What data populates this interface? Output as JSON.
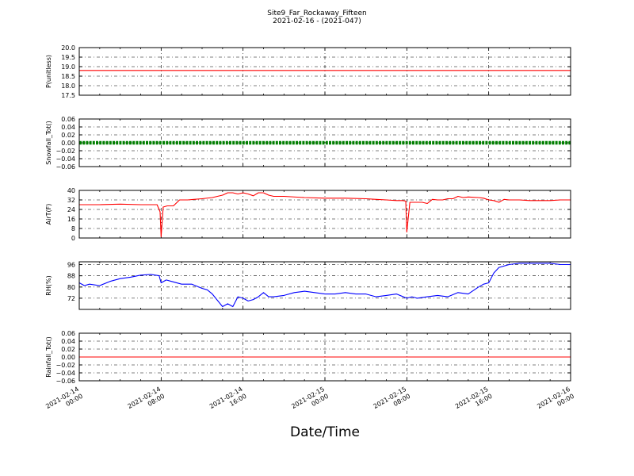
{
  "figure": {
    "title_line1": "Site9_Far_Rockaway_Fifteen",
    "title_line2": "2021-02-16 - (2021-047)",
    "xlabel": "Date/Time",
    "x_ticks": [
      {
        "line1": "2021-02-14",
        "line2": "00:00",
        "t": 0
      },
      {
        "line1": "2021-02-14",
        "line2": "08:00",
        "t": 8
      },
      {
        "line1": "2021-02-14",
        "line2": "16:00",
        "t": 16
      },
      {
        "line1": "2021-02-15",
        "line2": "00:00",
        "t": 24
      },
      {
        "line1": "2021-02-15",
        "line2": "08:00",
        "t": 32
      },
      {
        "line1": "2021-02-15",
        "line2": "16:00",
        "t": 40
      },
      {
        "line1": "2021-02-16",
        "line2": "00:00",
        "t": 48
      }
    ]
  },
  "chart_data": [
    {
      "type": "line",
      "ylabel": "P(unitless)",
      "ylim": [
        17.5,
        20.0
      ],
      "y_ticks": [
        "20.0",
        "19.5",
        "19.0",
        "18.5",
        "18.0",
        "17.5"
      ],
      "color": "#ff0000",
      "x_units": "hours since 2021-02-14 00:00",
      "x": [
        0,
        48
      ],
      "values": [
        18.8,
        18.8
      ]
    },
    {
      "type": "line",
      "ylabel": "Snowfall_Tot()",
      "ylim": [
        -0.06,
        0.06
      ],
      "y_ticks": [
        "0.06",
        "0.04",
        "0.02",
        "0.00",
        "−0.02",
        "−0.04",
        "−0.06"
      ],
      "color": "#008000",
      "markers": true,
      "x_units": "hours since 2021-02-14 00:00",
      "x": [
        0,
        48
      ],
      "values": [
        0.0,
        0.0
      ]
    },
    {
      "type": "line",
      "ylabel": "AirT(F)",
      "ylim": [
        0,
        40
      ],
      "y_ticks": [
        "40",
        "32",
        "24",
        "16",
        "8",
        "0"
      ],
      "color": "#ff0000",
      "x_units": "hours since 2021-02-14 00:00",
      "x": [
        0,
        2,
        4,
        6,
        7.6,
        7.9,
        8.0,
        8.2,
        8.6,
        9.2,
        9.8,
        10.6,
        11.2,
        12,
        13,
        14,
        14.5,
        15,
        15.5,
        16,
        16.5,
        17,
        17.5,
        18,
        18.5,
        19,
        20,
        22,
        24,
        26,
        28,
        29,
        30,
        31,
        31.6,
        31.9,
        32.0,
        32.3,
        32.8,
        33.5,
        34,
        34.5,
        35,
        35.5,
        36,
        36.5,
        37,
        37.5,
        38,
        39,
        39.5,
        40,
        40.5,
        41,
        41.5,
        42,
        43,
        44,
        46,
        47,
        48
      ],
      "values": [
        28,
        28,
        28.5,
        28,
        28,
        22,
        1,
        26,
        27,
        27,
        32,
        32,
        32.5,
        33,
        34,
        36,
        38,
        38,
        37,
        38,
        37,
        35.5,
        38,
        38,
        36,
        35,
        35,
        34,
        33.5,
        33.5,
        33,
        32.5,
        32,
        31.5,
        31.5,
        31,
        5,
        30,
        30,
        30,
        29,
        32.5,
        32,
        32,
        33,
        33,
        35,
        34,
        34.5,
        34,
        33.5,
        32,
        31.5,
        30,
        32.5,
        32,
        32,
        31.5,
        31.5,
        32,
        32
      ]
    },
    {
      "type": "line",
      "ylabel": "RH(%)",
      "ylim": [
        64,
        98
      ],
      "y_ticks": [
        "96",
        "88",
        "80",
        "72"
      ],
      "color": "#0000ff",
      "x_units": "hours since 2021-02-14 00:00",
      "x": [
        0,
        0.5,
        1,
        2,
        3,
        4,
        5,
        6,
        7,
        7.8,
        8.0,
        8.5,
        9,
        10,
        11,
        12,
        12.5,
        13,
        14,
        14.5,
        15,
        15.5,
        16,
        16.5,
        17,
        17.5,
        18,
        18.5,
        19,
        20,
        21,
        22,
        23,
        24,
        25,
        26,
        27,
        28,
        29,
        30,
        31,
        32,
        32.5,
        33,
        34,
        35,
        36,
        37,
        38,
        39,
        39.5,
        40,
        40.5,
        41,
        42,
        43,
        44,
        45,
        46,
        47,
        48
      ],
      "values": [
        83,
        81,
        82,
        81,
        84,
        86,
        87,
        88.5,
        89,
        88,
        83,
        85,
        84,
        82,
        82,
        79,
        78,
        75,
        66,
        68,
        66,
        73,
        72,
        70,
        71,
        73,
        76,
        73,
        73,
        74,
        76,
        77,
        76,
        75,
        75,
        76,
        75,
        75,
        73,
        74,
        75,
        72,
        73,
        72,
        73,
        74,
        73,
        76,
        75,
        80,
        82,
        83,
        90,
        94,
        96,
        97,
        97,
        97,
        97,
        96,
        96
      ]
    },
    {
      "type": "line",
      "ylabel": "Rainfall_Tot()",
      "ylim": [
        -0.06,
        0.06
      ],
      "y_ticks": [
        "0.06",
        "0.04",
        "0.02",
        "0.00",
        "−0.02",
        "−0.04",
        "−0.06"
      ],
      "color": "#ff0000",
      "x_units": "hours since 2021-02-14 00:00",
      "x": [
        0,
        48
      ],
      "values": [
        0.0,
        0.0
      ]
    }
  ]
}
